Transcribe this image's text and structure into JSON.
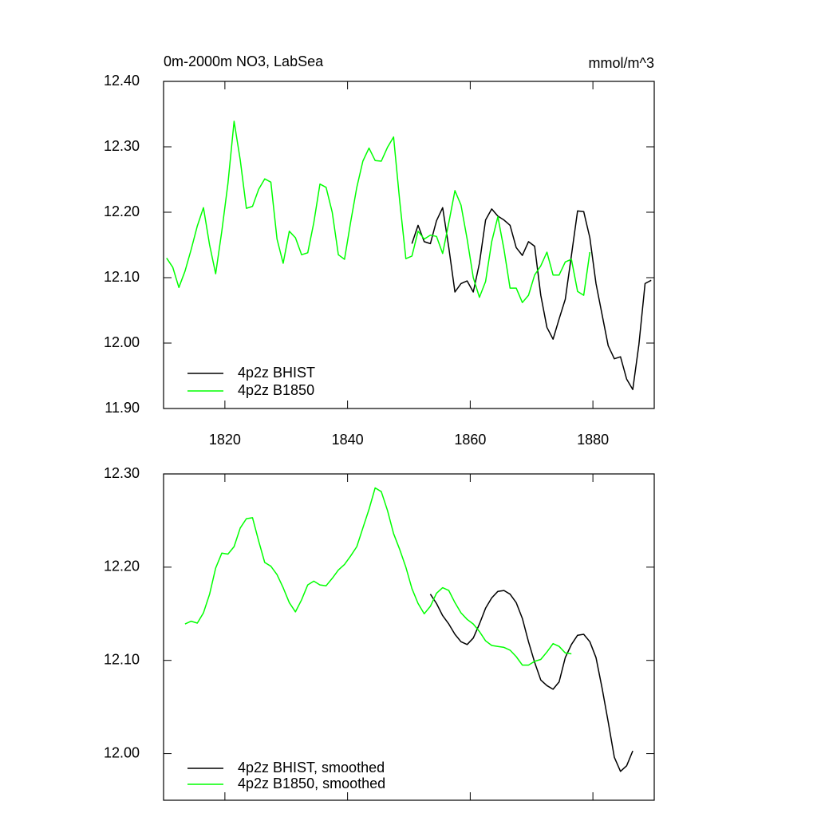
{
  "chart_data": [
    {
      "type": "line",
      "title": "0m-2000m NO3, LabSea",
      "units": "mmol/m^3",
      "xlim": [
        1810,
        1890
      ],
      "xticks": [
        1820,
        1840,
        1860,
        1880
      ],
      "xticklabels": true,
      "ylim": [
        11.9,
        12.4
      ],
      "yticks": [
        {
          "value": 11.9,
          "label": "11.90"
        },
        {
          "value": 12.0,
          "label": "12.00"
        },
        {
          "value": 12.1,
          "label": "12.10"
        },
        {
          "value": 12.2,
          "label": "12.20"
        },
        {
          "value": 12.3,
          "label": "12.30"
        },
        {
          "value": 12.4,
          "label": "12.40"
        }
      ],
      "legend": "lower left",
      "series": [
        {
          "name": "4p2z BHIST",
          "color": "#000000",
          "x": [
            1850.5,
            1851.5,
            1852.5,
            1853.5,
            1854.5,
            1855.5,
            1856.5,
            1857.5,
            1858.5,
            1859.5,
            1860.5,
            1861.5,
            1862.5,
            1863.5,
            1864.5,
            1865.5,
            1866.5,
            1867.5,
            1868.5,
            1869.5,
            1870.5,
            1871.5,
            1872.5,
            1873.5,
            1874.5,
            1875.5,
            1876.5,
            1877.5,
            1878.5,
            1879.5,
            1880.5,
            1881.5,
            1882.5,
            1883.5,
            1884.5,
            1885.5,
            1886.5,
            1887.5,
            1888.5,
            1889.5
          ],
          "values": [
            12.152,
            12.18,
            12.155,
            12.152,
            12.187,
            12.207,
            12.146,
            12.078,
            12.091,
            12.095,
            12.078,
            12.122,
            12.188,
            12.205,
            12.194,
            12.188,
            12.18,
            12.146,
            12.134,
            12.155,
            12.148,
            12.073,
            12.024,
            12.006,
            12.037,
            12.067,
            12.134,
            12.202,
            12.201,
            12.161,
            12.091,
            12.043,
            11.996,
            11.976,
            11.979,
            11.945,
            11.929,
            11.998,
            12.091,
            12.096
          ]
        },
        {
          "name": "4p2z B1850",
          "color": "#00ff00",
          "x": [
            1810.5,
            1811.5,
            1812.5,
            1813.5,
            1814.5,
            1815.5,
            1816.5,
            1817.5,
            1818.5,
            1819.5,
            1820.5,
            1821.5,
            1822.5,
            1823.5,
            1824.5,
            1825.5,
            1826.5,
            1827.5,
            1828.5,
            1829.5,
            1830.5,
            1831.5,
            1832.5,
            1833.5,
            1834.5,
            1835.5,
            1836.5,
            1837.5,
            1838.5,
            1839.5,
            1840.5,
            1841.5,
            1842.5,
            1843.5,
            1844.5,
            1845.5,
            1846.5,
            1847.5,
            1848.5,
            1849.5,
            1850.5,
            1851.5,
            1852.5,
            1853.5,
            1854.5,
            1855.5,
            1856.5,
            1857.5,
            1858.5,
            1859.5,
            1860.5,
            1861.5,
            1862.5,
            1863.5,
            1864.5,
            1865.5,
            1866.5,
            1867.5,
            1868.5,
            1869.5,
            1870.5,
            1871.5,
            1872.5,
            1873.5,
            1874.5,
            1875.5,
            1876.5,
            1877.5,
            1878.5,
            1879.5
          ],
          "values": [
            12.13,
            12.116,
            12.085,
            12.11,
            12.143,
            12.179,
            12.207,
            12.15,
            12.106,
            12.171,
            12.244,
            12.339,
            12.28,
            12.206,
            12.209,
            12.235,
            12.251,
            12.246,
            12.159,
            12.122,
            12.171,
            12.161,
            12.135,
            12.138,
            12.184,
            12.243,
            12.238,
            12.2,
            12.135,
            12.128,
            12.185,
            12.238,
            12.278,
            12.298,
            12.279,
            12.278,
            12.299,
            12.315,
            12.217,
            12.129,
            12.133,
            12.171,
            12.159,
            12.165,
            12.163,
            12.137,
            12.184,
            12.233,
            12.211,
            12.159,
            12.1,
            12.07,
            12.094,
            12.155,
            12.193,
            12.143,
            12.084,
            12.084,
            12.062,
            12.073,
            12.104,
            12.118,
            12.139,
            12.104,
            12.104,
            12.124,
            12.128,
            12.079,
            12.073,
            12.139
          ]
        }
      ]
    },
    {
      "type": "line",
      "xlim": [
        1810,
        1890
      ],
      "xticks": [
        1820,
        1840,
        1860,
        1880
      ],
      "xticklabels": false,
      "ylim": [
        11.95,
        12.3
      ],
      "yticks": [
        {
          "value": 12.0,
          "label": "12.00"
        },
        {
          "value": 12.1,
          "label": "12.10"
        },
        {
          "value": 12.2,
          "label": "12.20"
        },
        {
          "value": 12.3,
          "label": "12.30"
        }
      ],
      "legend": "lower left",
      "series": [
        {
          "name": "4p2z BHIST, smoothed",
          "color": "#000000",
          "x": [
            1853.5,
            1854.5,
            1855.5,
            1856.5,
            1857.5,
            1858.5,
            1859.5,
            1860.5,
            1861.5,
            1862.5,
            1863.5,
            1864.5,
            1865.5,
            1866.5,
            1867.5,
            1868.5,
            1869.5,
            1870.5,
            1871.5,
            1872.5,
            1873.5,
            1874.5,
            1875.5,
            1876.5,
            1877.5,
            1878.5,
            1879.5,
            1880.5,
            1881.5,
            1882.5,
            1883.5,
            1884.5,
            1885.5,
            1886.5
          ],
          "values": [
            12.171,
            12.161,
            12.148,
            12.139,
            12.128,
            12.12,
            12.117,
            12.124,
            12.139,
            12.156,
            12.167,
            12.174,
            12.175,
            12.171,
            12.162,
            12.145,
            12.12,
            12.098,
            12.079,
            12.073,
            12.069,
            12.077,
            12.103,
            12.117,
            12.127,
            12.128,
            12.12,
            12.103,
            12.07,
            12.034,
            11.996,
            11.981,
            11.987,
            12.003
          ]
        },
        {
          "name": "4p2z B1850, smoothed",
          "color": "#00ff00",
          "x": [
            1813.5,
            1814.5,
            1815.5,
            1816.5,
            1817.5,
            1818.5,
            1819.5,
            1820.5,
            1821.5,
            1822.5,
            1823.5,
            1824.5,
            1825.5,
            1826.5,
            1827.5,
            1828.5,
            1829.5,
            1830.5,
            1831.5,
            1832.5,
            1833.5,
            1834.5,
            1835.5,
            1836.5,
            1837.5,
            1838.5,
            1839.5,
            1840.5,
            1841.5,
            1842.5,
            1843.5,
            1844.5,
            1845.5,
            1846.5,
            1847.5,
            1848.5,
            1849.5,
            1850.5,
            1851.5,
            1852.5,
            1853.5,
            1854.5,
            1855.5,
            1856.5,
            1857.5,
            1858.5,
            1859.5,
            1860.5,
            1861.5,
            1862.5,
            1863.5,
            1864.5,
            1865.5,
            1866.5,
            1867.5,
            1868.5,
            1869.5,
            1870.5,
            1871.5,
            1872.5,
            1873.5,
            1874.5,
            1875.5,
            1876.5
          ],
          "values": [
            12.139,
            12.142,
            12.14,
            12.151,
            12.171,
            12.199,
            12.215,
            12.214,
            12.222,
            12.242,
            12.252,
            12.253,
            12.228,
            12.205,
            12.201,
            12.192,
            12.178,
            12.162,
            12.152,
            12.165,
            12.181,
            12.185,
            12.181,
            12.18,
            12.188,
            12.197,
            12.203,
            12.212,
            12.222,
            12.242,
            12.262,
            12.285,
            12.281,
            12.261,
            12.236,
            12.219,
            12.2,
            12.177,
            12.161,
            12.15,
            12.158,
            12.172,
            12.178,
            12.175,
            12.162,
            12.151,
            12.144,
            12.139,
            12.131,
            12.121,
            12.116,
            12.115,
            12.114,
            12.111,
            12.104,
            12.095,
            12.095,
            12.099,
            12.101,
            12.109,
            12.118,
            12.115,
            12.108,
            12.107
          ]
        }
      ]
    }
  ]
}
